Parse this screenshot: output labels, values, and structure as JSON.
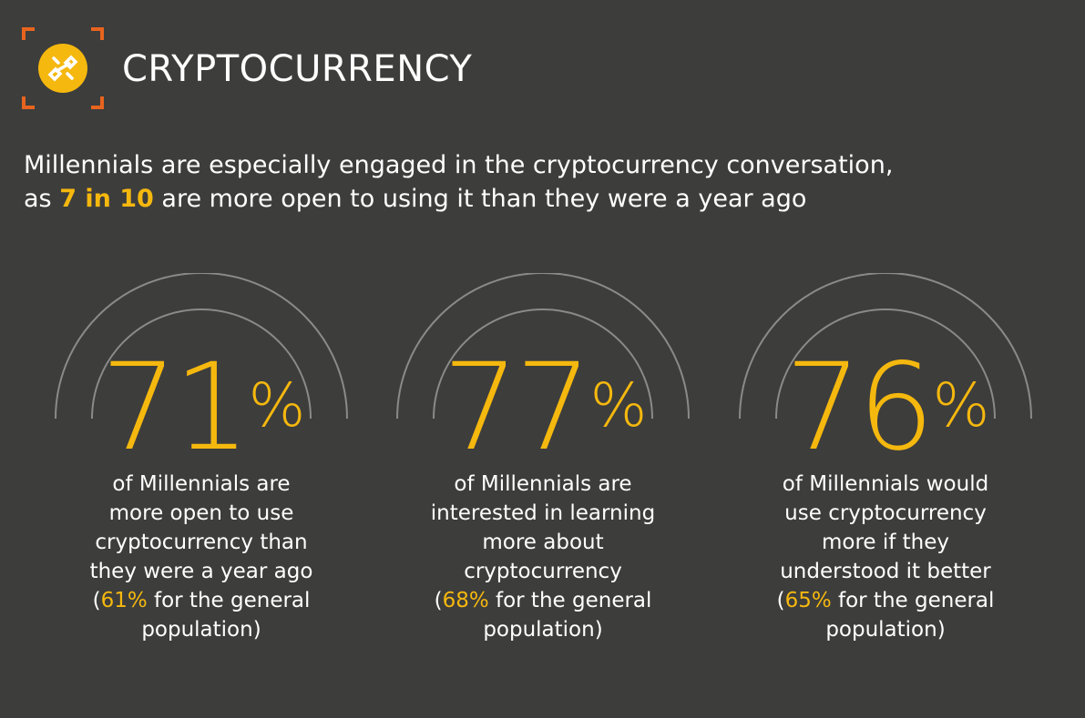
{
  "header": {
    "title": "CRYPTOCURRENCY",
    "icon": "chain-link-icon",
    "frame_color": "#e8641e",
    "icon_color": "#f5b80e"
  },
  "subtitle": {
    "line1": "Millennials are especially engaged in the cryptocurrency conversation,",
    "line2_pre": "as ",
    "line2_highlight": "7 in 10",
    "line2_post": " are more open to using it than they were a year ago"
  },
  "stats": [
    {
      "value": "71",
      "unit": "%",
      "lines": [
        "of Millennials are",
        "more open to use",
        "cryptocurrency than",
        "they were a year ago"
      ],
      "general_open": "(",
      "general_value": "61%",
      "general_text": " for the general",
      "general_close": "population)"
    },
    {
      "value": "77",
      "unit": "%",
      "lines": [
        "of Millennials are",
        "interested in learning",
        "more about",
        "cryptocurrency"
      ],
      "general_open": "(",
      "general_value": "68%",
      "general_text": " for the general",
      "general_close": "population)"
    },
    {
      "value": "76",
      "unit": "%",
      "lines": [
        "of Millennials would",
        "use cryptocurrency",
        "more if they",
        "understood it better"
      ],
      "general_open": "(",
      "general_value": "65%",
      "general_text": " for the general",
      "general_close": "population)"
    }
  ],
  "colors": {
    "background": "#3d3d3c",
    "accent": "#f5b80e",
    "arc": "#8a8a88"
  }
}
